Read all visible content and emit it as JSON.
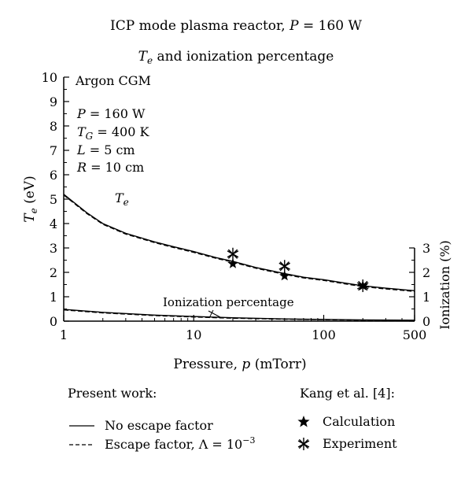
{
  "chart_data": {
    "type": "line",
    "title_line1": "ICP mode plasma reactor, ",
    "title_line1_var": "P",
    "title_line1_value": " = 160 W",
    "title_line2_var": "T",
    "title_line2_sub": "e",
    "title_line2_rest": " and ionization percentage",
    "xlabel": "Pressure, ",
    "xlabel_var": "p",
    "xlabel_unit": " (mTorr)",
    "ylabel_var": "T",
    "ylabel_sub": "e",
    "ylabel_unit": " (eV)",
    "y2label": "Ionization (%)",
    "x_scale": "log",
    "xlim": [
      1,
      500
    ],
    "ylim": [
      0,
      10
    ],
    "y2lim": [
      0,
      10
    ],
    "x_ticks": [
      1,
      10,
      100,
      500
    ],
    "x_tick_labels": [
      "1",
      "10",
      "100",
      "500"
    ],
    "y_ticks": [
      0,
      1,
      2,
      3,
      4,
      5,
      6,
      7,
      8,
      9,
      10
    ],
    "y_tick_labels": [
      "0",
      "1",
      "2",
      "3",
      "4",
      "5",
      "6",
      "7",
      "8",
      "9",
      "10"
    ],
    "y2_ticks": [
      0,
      1,
      2,
      3
    ],
    "y2_tick_labels": [
      "0",
      "1",
      "2",
      "3"
    ],
    "grid": false,
    "params_heading": "Argon CGM",
    "params": [
      {
        "var": "P",
        "sub": "",
        "value": " = 160 W"
      },
      {
        "var": "T",
        "sub": "G",
        "value": " = 400 K"
      },
      {
        "var": "L",
        "sub": "",
        "value": " = 5 cm"
      },
      {
        "var": "R",
        "sub": "",
        "value": " = 10 cm"
      }
    ],
    "annotations": [
      {
        "var": "T",
        "sub": "e",
        "text": ""
      },
      {
        "var": "",
        "sub": "",
        "text": "Ionization percentage"
      }
    ],
    "series": [
      {
        "key": "te_no_escape",
        "style": "solid",
        "x": [
          1,
          1.5,
          2,
          3,
          5,
          7,
          10,
          15,
          20,
          30,
          50,
          70,
          100,
          150,
          200,
          300,
          500
        ],
        "y": [
          5.2,
          4.45,
          4.0,
          3.6,
          3.25,
          3.05,
          2.85,
          2.6,
          2.45,
          2.2,
          1.95,
          1.8,
          1.7,
          1.55,
          1.45,
          1.35,
          1.25
        ]
      },
      {
        "key": "te_escape",
        "style": "dashed",
        "x": [
          1,
          1.5,
          2,
          3,
          5,
          7,
          10,
          15,
          20,
          30,
          50,
          70,
          100,
          150,
          200,
          300,
          500
        ],
        "y": [
          5.17,
          4.42,
          3.97,
          3.57,
          3.22,
          3.02,
          2.82,
          2.57,
          2.42,
          2.17,
          1.92,
          1.77,
          1.67,
          1.52,
          1.42,
          1.32,
          1.22
        ]
      },
      {
        "key": "ionization_no_escape",
        "style": "solid",
        "x": [
          1,
          2,
          5,
          10,
          20,
          50,
          100,
          200,
          500
        ],
        "y": [
          0.48,
          0.36,
          0.25,
          0.19,
          0.14,
          0.09,
          0.07,
          0.05,
          0.04
        ]
      },
      {
        "key": "ionization_escape",
        "style": "dashed",
        "x": [
          1,
          2,
          5,
          10,
          20,
          50,
          100,
          200,
          500
        ],
        "y": [
          0.46,
          0.34,
          0.23,
          0.17,
          0.12,
          0.08,
          0.06,
          0.04,
          0.03
        ]
      }
    ],
    "calculation_points": {
      "x": [
        20,
        50,
        200
      ],
      "y": [
        2.35,
        1.85,
        1.45
      ]
    },
    "experiment_points": {
      "x": [
        20,
        50,
        200
      ],
      "y": [
        2.75,
        2.25,
        1.45
      ]
    },
    "legend_left_heading": "Present work:",
    "legend_left": [
      {
        "style": "solid",
        "text": "No escape factor"
      },
      {
        "style": "dashed",
        "text": "Escape factor, Λ = 10",
        "sup": "−3"
      }
    ],
    "legend_right_heading": "Kang et al. [4]:",
    "legend_right": [
      {
        "marker": "star",
        "text": "Calculation"
      },
      {
        "marker": "asterisk",
        "text": "Experiment"
      }
    ]
  }
}
